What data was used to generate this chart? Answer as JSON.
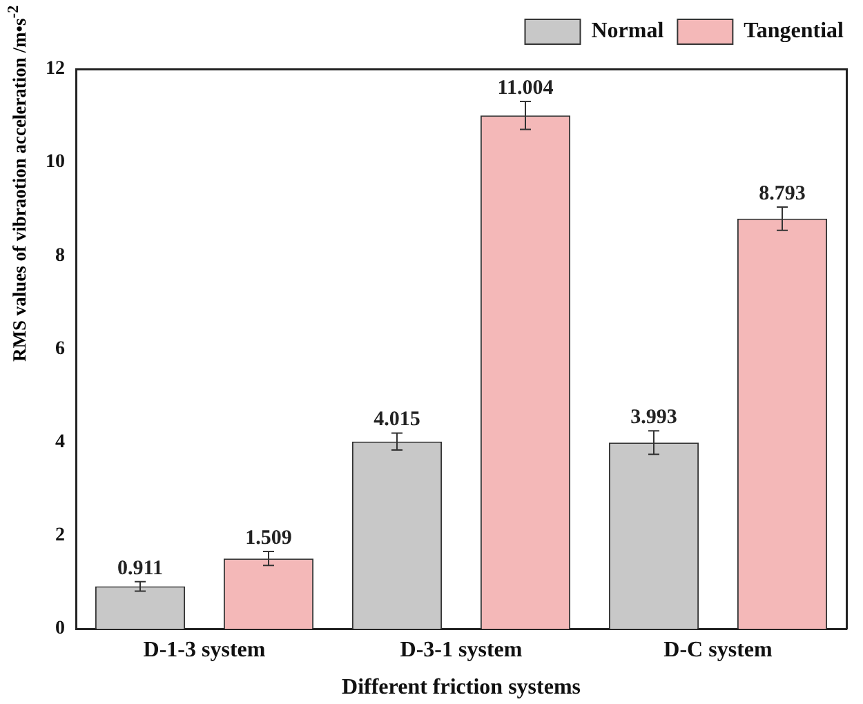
{
  "chart_data": {
    "type": "bar",
    "xlabel": "Different friction systems",
    "ylabel": "RMS values of vibraotion acceleration /m•s$^{-2}$",
    "categories": [
      "D-1-3 system",
      "D-3-1 system",
      "D-C system"
    ],
    "series": [
      {
        "name": "Normal",
        "color": "#c8c8c8",
        "values": [
          0.911,
          4.015,
          3.993
        ],
        "errors": [
          0.1,
          0.18,
          0.25
        ]
      },
      {
        "name": "Tangential",
        "color": "#f4b8b8",
        "values": [
          1.509,
          11.004,
          8.793
        ],
        "errors": [
          0.15,
          0.3,
          0.25
        ]
      }
    ],
    "ylim": [
      0,
      12
    ],
    "yticks": [
      0,
      2,
      4,
      6,
      8,
      10,
      12
    ],
    "grid": false,
    "legend": "top right",
    "data_labels": true
  }
}
